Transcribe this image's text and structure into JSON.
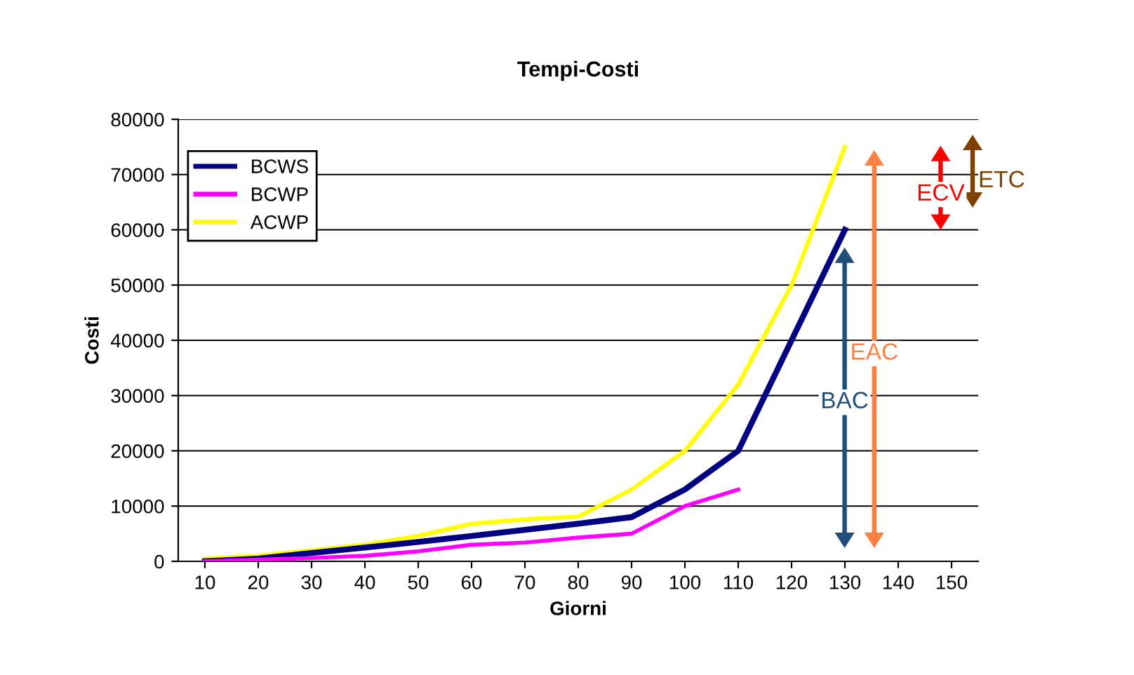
{
  "chart_data": {
    "type": "line",
    "title": "Tempi-Costi",
    "xlabel": "Giorni",
    "ylabel": "Costi",
    "categories": [
      "10",
      "20",
      "30",
      "40",
      "50",
      "60",
      "70",
      "80",
      "90",
      "100",
      "110",
      "120",
      "130",
      "140",
      "150"
    ],
    "series": [
      {
        "name": "BCWS",
        "color": "#000080",
        "values": [
          0,
          500,
          1500,
          2500,
          3500,
          4600,
          5700,
          6800,
          8000,
          13000,
          20000,
          40000,
          60000,
          null,
          null
        ]
      },
      {
        "name": "BCWP",
        "color": "#ff00ff",
        "values": [
          0,
          300,
          600,
          1000,
          1800,
          3000,
          3400,
          4300,
          5000,
          10000,
          13000,
          null,
          null,
          null,
          null
        ]
      },
      {
        "name": "ACWP",
        "color": "#ffff00",
        "values": [
          500,
          1000,
          2000,
          3000,
          4600,
          6800,
          7600,
          8100,
          13000,
          20000,
          32000,
          50000,
          75000,
          null,
          null
        ]
      }
    ],
    "ylim": [
      0,
      80000
    ],
    "yticks": [
      0,
      10000,
      20000,
      30000,
      40000,
      50000,
      60000,
      70000,
      80000
    ],
    "grid": "y",
    "legend": "top left",
    "marker": "none",
    "line_style": "solid",
    "annotations": [
      "BAC",
      "EAC",
      "ECV",
      "ETC"
    ]
  }
}
